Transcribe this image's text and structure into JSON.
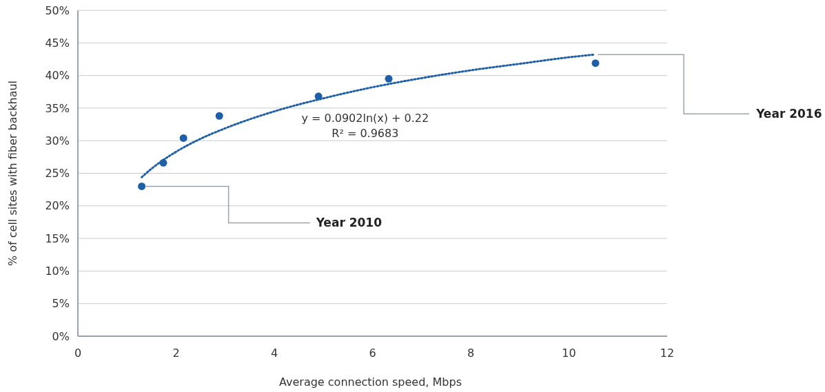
{
  "chart_data": {
    "type": "scatter",
    "xlabel": "Average connection speed, Mbps",
    "ylabel": "% of cell sites with fiber backhaul",
    "xlim": [
      0,
      12
    ],
    "xticks": [
      0,
      2,
      4,
      6,
      8,
      10,
      12
    ],
    "ylim": [
      0,
      50
    ],
    "yticks": [
      {
        "value": 0,
        "label": "0%"
      },
      {
        "value": 5,
        "label": "5%"
      },
      {
        "value": 10,
        "label": "10%"
      },
      {
        "value": 15,
        "label": "15%"
      },
      {
        "value": 20,
        "label": "20%"
      },
      {
        "value": 25,
        "label": "25%"
      },
      {
        "value": 30,
        "label": "30%"
      },
      {
        "value": 35,
        "label": "35%"
      },
      {
        "value": 40,
        "label": "40%"
      },
      {
        "value": 45,
        "label": "45%"
      },
      {
        "value": 50,
        "label": "50%"
      }
    ],
    "grid": "y",
    "marker": "circle",
    "series": [
      {
        "color": "#1f5fa8",
        "x": [
          1.3,
          1.74,
          2.15,
          2.88,
          4.9,
          6.33,
          10.54
        ],
        "values": [
          23.0,
          26.6,
          30.4,
          33.8,
          36.8,
          39.5,
          41.9
        ]
      },
      {
        "type": "line",
        "color": "#1f5fa8",
        "line_style": "dotted",
        "marker": "none",
        "x": [
          1.3,
          1.5,
          2,
          2.5,
          3,
          4,
          5,
          6,
          7,
          8,
          9,
          10,
          10.5
        ],
        "values": [
          24.4,
          25.7,
          28.3,
          30.3,
          31.9,
          34.5,
          36.5,
          38.2,
          39.6,
          40.8,
          41.8,
          42.8,
          43.2
        ]
      }
    ],
    "annotations": [
      "y = 0.0902ln(x) + 0.22",
      "R² = 0.9683",
      {
        "text": "Year 2010",
        "x": 1.3,
        "y": 23.0
      },
      {
        "text": "Year 2016",
        "x": 10.5,
        "y": 43.2
      }
    ]
  }
}
